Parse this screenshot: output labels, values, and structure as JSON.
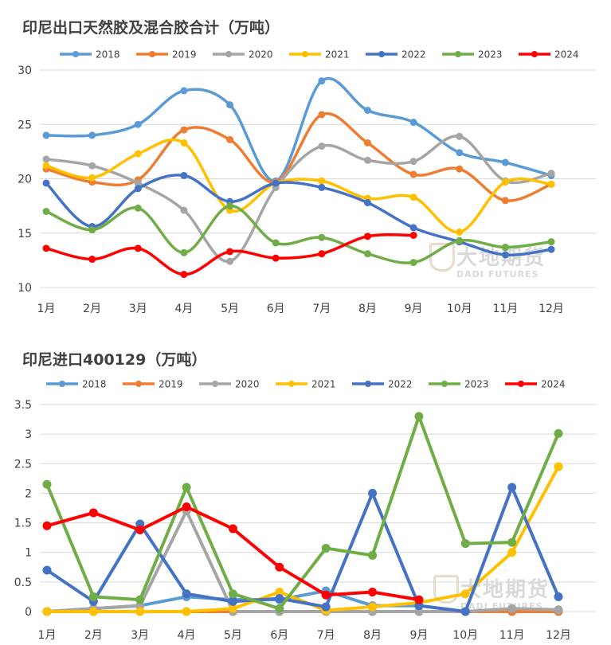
{
  "months": [
    "1月",
    "2月",
    "3月",
    "4月",
    "5月",
    "6月",
    "7月",
    "8月",
    "9月",
    "10月",
    "11月",
    "12月"
  ],
  "watermark": {
    "cn": "大地期货",
    "en": "DADI FUTURES"
  },
  "chart_data": [
    {
      "type": "line",
      "title": "印尼出口天然胶及混合胶合计（万吨）",
      "categories": [
        "1月",
        "2月",
        "3月",
        "4月",
        "5月",
        "6月",
        "7月",
        "8月",
        "9月",
        "10月",
        "11月",
        "12月"
      ],
      "ylim": [
        10,
        30
      ],
      "yticks": [
        10,
        15,
        20,
        25,
        30
      ],
      "grid": true,
      "legend": "top",
      "series": [
        {
          "name": "2018",
          "color": "#5b9bd5",
          "values": [
            24.0,
            24.0,
            25.0,
            28.1,
            26.8,
            19.8,
            29.0,
            26.3,
            25.2,
            22.4,
            21.5,
            20.3
          ]
        },
        {
          "name": "2019",
          "color": "#ed7d31",
          "values": [
            20.9,
            19.7,
            19.9,
            24.5,
            23.6,
            19.7,
            25.9,
            23.3,
            20.4,
            20.9,
            18.0,
            19.5
          ]
        },
        {
          "name": "2020",
          "color": "#a5a5a5",
          "values": [
            21.8,
            21.2,
            19.6,
            17.1,
            12.4,
            19.2,
            23.0,
            21.7,
            21.6,
            23.9,
            19.8,
            20.5
          ]
        },
        {
          "name": "2021",
          "color": "#ffc000",
          "values": [
            21.2,
            20.1,
            22.3,
            23.3,
            17.1,
            19.6,
            19.8,
            18.2,
            18.3,
            15.1,
            19.7,
            19.5
          ]
        },
        {
          "name": "2022",
          "color": "#4472c4",
          "values": [
            19.6,
            15.6,
            19.1,
            20.3,
            17.9,
            19.6,
            19.2,
            17.8,
            15.5,
            14.2,
            13.0,
            13.5
          ]
        },
        {
          "name": "2023",
          "color": "#70ad47",
          "values": [
            17.0,
            15.3,
            17.3,
            13.2,
            17.5,
            14.1,
            14.6,
            13.1,
            12.3,
            14.3,
            13.7,
            14.2
          ]
        },
        {
          "name": "2024",
          "color": "#ff0000",
          "values": [
            13.6,
            12.6,
            13.6,
            11.2,
            13.3,
            12.7,
            13.1,
            14.7,
            14.8,
            null,
            null,
            null
          ]
        }
      ]
    },
    {
      "type": "line",
      "title": "印尼进口400129（万吨）",
      "categories": [
        "1月",
        "2月",
        "3月",
        "4月",
        "5月",
        "6月",
        "7月",
        "8月",
        "9月",
        "10月",
        "11月",
        "12月"
      ],
      "ylim": [
        0,
        3.5
      ],
      "yticks": [
        0,
        0.5,
        1,
        1.5,
        2,
        2.5,
        3,
        3.5
      ],
      "grid": true,
      "legend": "top",
      "series": [
        {
          "name": "2018",
          "color": "#5b9bd5",
          "values": [
            0.0,
            0.05,
            0.1,
            0.25,
            0.2,
            0.2,
            0.35,
            0.1,
            0.1,
            0.0,
            0.0,
            0.0
          ]
        },
        {
          "name": "2019",
          "color": "#ed7d31",
          "values": [
            0.0,
            0.0,
            0.0,
            0.0,
            0.0,
            0.0,
            0.0,
            0.0,
            0.0,
            0.0,
            0.0,
            0.0
          ]
        },
        {
          "name": "2020",
          "color": "#a5a5a5",
          "values": [
            0.0,
            0.05,
            0.1,
            1.7,
            0.0,
            0.0,
            0.0,
            0.0,
            0.0,
            0.0,
            0.05,
            0.03
          ]
        },
        {
          "name": "2021",
          "color": "#ffc000",
          "values": [
            0.0,
            0.0,
            0.0,
            0.0,
            0.05,
            0.33,
            0.02,
            0.08,
            0.15,
            0.3,
            1.0,
            2.45
          ]
        },
        {
          "name": "2022",
          "color": "#4472c4",
          "values": [
            0.7,
            0.17,
            1.48,
            0.3,
            0.17,
            0.22,
            0.08,
            2.0,
            0.1,
            0.0,
            2.1,
            0.25
          ]
        },
        {
          "name": "2023",
          "color": "#70ad47",
          "values": [
            2.15,
            0.25,
            0.2,
            2.1,
            0.3,
            0.05,
            1.07,
            0.95,
            3.3,
            1.15,
            1.17,
            3.01
          ]
        },
        {
          "name": "2024",
          "color": "#ff0000",
          "values": [
            1.45,
            1.67,
            1.38,
            1.77,
            1.4,
            0.75,
            0.28,
            0.33,
            0.2,
            null,
            null,
            null
          ]
        }
      ]
    }
  ]
}
